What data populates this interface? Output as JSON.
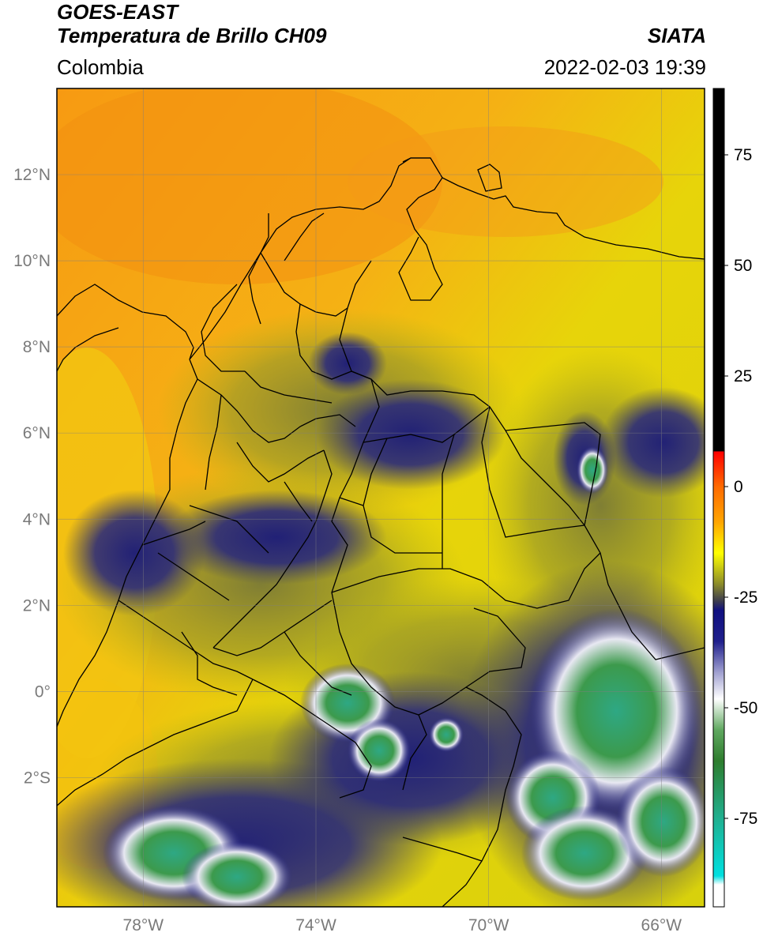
{
  "header": {
    "satellite": "GOES-EAST",
    "product": "Temperatura de Brillo CH09",
    "brand": "SIATA",
    "region": "Colombia",
    "datetime": "2022-02-03 19:39"
  },
  "map": {
    "lon_range": [
      -80,
      -65
    ],
    "lat_range": [
      -5,
      14
    ],
    "lat_ticks": [
      {
        "value": 12,
        "label": "12°N"
      },
      {
        "value": 10,
        "label": "10°N"
      },
      {
        "value": 8,
        "label": "8°N"
      },
      {
        "value": 6,
        "label": "6°N"
      },
      {
        "value": 4,
        "label": "4°N"
      },
      {
        "value": 2,
        "label": "2°N"
      },
      {
        "value": 0,
        "label": "0°"
      },
      {
        "value": -2,
        "label": "2°S"
      }
    ],
    "lon_ticks": [
      {
        "value": -78,
        "label": "78°W"
      },
      {
        "value": -74,
        "label": "74°W"
      },
      {
        "value": -70,
        "label": "70°W"
      },
      {
        "value": -66,
        "label": "66°W"
      }
    ]
  },
  "colorbar": {
    "range": [
      -95,
      90
    ],
    "ticks": [
      {
        "value": 75,
        "label": "75"
      },
      {
        "value": 50,
        "label": "50"
      },
      {
        "value": 25,
        "label": "25"
      },
      {
        "value": 0,
        "label": "0"
      },
      {
        "value": -25,
        "label": "-25"
      },
      {
        "value": -50,
        "label": "-50"
      },
      {
        "value": -75,
        "label": "-75"
      }
    ],
    "stops": [
      {
        "value": 90,
        "color": "#000000"
      },
      {
        "value": 8,
        "color": "#000000"
      },
      {
        "value": 7.9,
        "color": "#ff0000"
      },
      {
        "value": 0,
        "color": "#ff6a00"
      },
      {
        "value": -8,
        "color": "#ffa500"
      },
      {
        "value": -15,
        "color": "#ffff00"
      },
      {
        "value": -22,
        "color": "#8c8c2a"
      },
      {
        "value": -26,
        "color": "#3a3a50"
      },
      {
        "value": -28,
        "color": "#101080"
      },
      {
        "value": -35,
        "color": "#20208c"
      },
      {
        "value": -42,
        "color": "#a0a0d0"
      },
      {
        "value": -48,
        "color": "#ffffff"
      },
      {
        "value": -55,
        "color": "#60a860"
      },
      {
        "value": -62,
        "color": "#2e7d2e"
      },
      {
        "value": -75,
        "color": "#20b090"
      },
      {
        "value": -88,
        "color": "#00e0e0"
      },
      {
        "value": -90,
        "color": "#ffffff"
      },
      {
        "value": -95,
        "color": "#ffffff"
      }
    ]
  }
}
